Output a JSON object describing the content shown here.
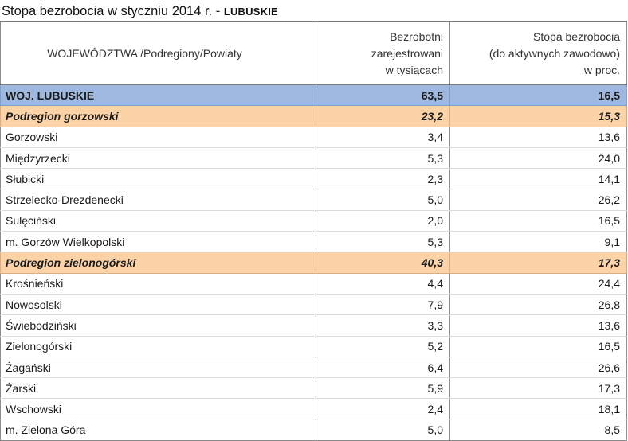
{
  "title": {
    "main": "Stopa bezrobocia w styczniu 2014 r. - ",
    "region": "LUBUSKIE"
  },
  "columns": {
    "name": "WOJEWÓDZTWA /Podregiony/Powiaty",
    "registered": [
      "Bezrobotni",
      "zarejestrowani",
      "w tysiącach"
    ],
    "rate": [
      "Stopa bezrobocia",
      "(do aktywnych zawodowo)",
      "w proc."
    ]
  },
  "rows": [
    {
      "kind": "region",
      "name": "WOJ. LUBUSKIE",
      "registered": "63,5",
      "rate": "16,5"
    },
    {
      "kind": "subregion",
      "name": "Podregion gorzowski",
      "registered": "23,2",
      "rate": "15,3"
    },
    {
      "kind": "row",
      "name": "Gorzowski",
      "registered": "3,4",
      "rate": "13,6"
    },
    {
      "kind": "row",
      "name": "Międzyrzecki",
      "registered": "5,3",
      "rate": "24,0"
    },
    {
      "kind": "row",
      "name": "Słubicki",
      "registered": "2,3",
      "rate": "14,1"
    },
    {
      "kind": "row",
      "name": "Strzelecko-Drezdenecki",
      "registered": "5,0",
      "rate": "26,2"
    },
    {
      "kind": "row",
      "name": "Sulęciński",
      "registered": "2,0",
      "rate": "16,5"
    },
    {
      "kind": "row",
      "name": "m. Gorzów Wielkopolski",
      "registered": "5,3",
      "rate": "9,1"
    },
    {
      "kind": "subregion",
      "name": "Podregion zielonogórski",
      "registered": "40,3",
      "rate": "17,3"
    },
    {
      "kind": "row",
      "name": "Krośnieński",
      "registered": "4,4",
      "rate": "24,4"
    },
    {
      "kind": "row",
      "name": "Nowosolski",
      "registered": "7,9",
      "rate": "26,8"
    },
    {
      "kind": "row",
      "name": "Świebodziński",
      "registered": "3,3",
      "rate": "13,6"
    },
    {
      "kind": "row",
      "name": "Zielonogórski",
      "registered": "5,2",
      "rate": "16,5"
    },
    {
      "kind": "row",
      "name": "Żagański",
      "registered": "6,4",
      "rate": "26,6"
    },
    {
      "kind": "row",
      "name": "Żarski",
      "registered": "5,9",
      "rate": "17,3"
    },
    {
      "kind": "row",
      "name": "Wschowski",
      "registered": "2,4",
      "rate": "18,1"
    },
    {
      "kind": "row",
      "name": "m. Zielona Góra",
      "registered": "5,0",
      "rate": "8,5"
    }
  ],
  "colors": {
    "region_bg": "#9fb8df",
    "subregion_bg": "#fbd3a6"
  }
}
